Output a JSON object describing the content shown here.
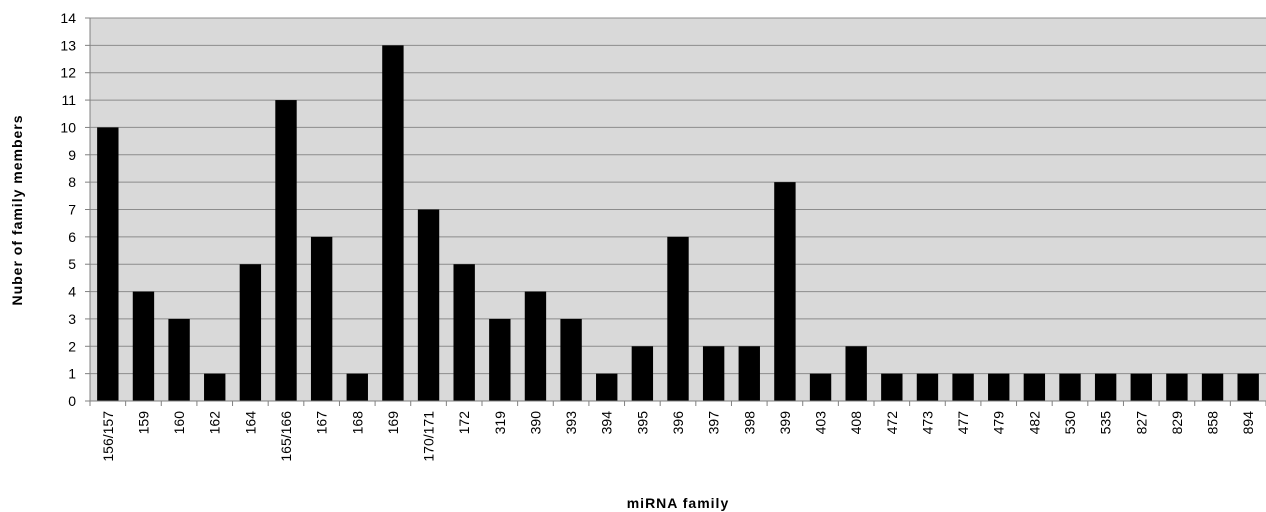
{
  "chart_data": {
    "type": "bar",
    "title": "",
    "xlabel": "miRNA family",
    "ylabel": "Nuber of family members",
    "categories": [
      "156/157",
      "159",
      "160",
      "162",
      "164",
      "165/166",
      "167",
      "168",
      "169",
      "170/171",
      "172",
      "319",
      "390",
      "393",
      "394",
      "395",
      "396",
      "397",
      "398",
      "399",
      "403",
      "408",
      "472",
      "473",
      "477",
      "479",
      "482",
      "530",
      "535",
      "827",
      "829",
      "858",
      "894"
    ],
    "values": [
      10,
      4,
      3,
      1,
      5,
      11,
      6,
      1,
      13,
      7,
      5,
      3,
      4,
      3,
      1,
      2,
      6,
      2,
      2,
      8,
      1,
      2,
      1,
      1,
      1,
      1,
      1,
      1,
      1,
      1,
      1,
      1,
      1
    ],
    "ylim": [
      0,
      14
    ],
    "yticks": [
      0,
      1,
      2,
      3,
      4,
      5,
      6,
      7,
      8,
      9,
      10,
      11,
      12,
      13,
      14
    ],
    "grid": true,
    "legend": "none",
    "colors": {
      "bar": "#000000",
      "plot_background": "#d9d9d9",
      "gridline": "#8c8c8c"
    }
  }
}
